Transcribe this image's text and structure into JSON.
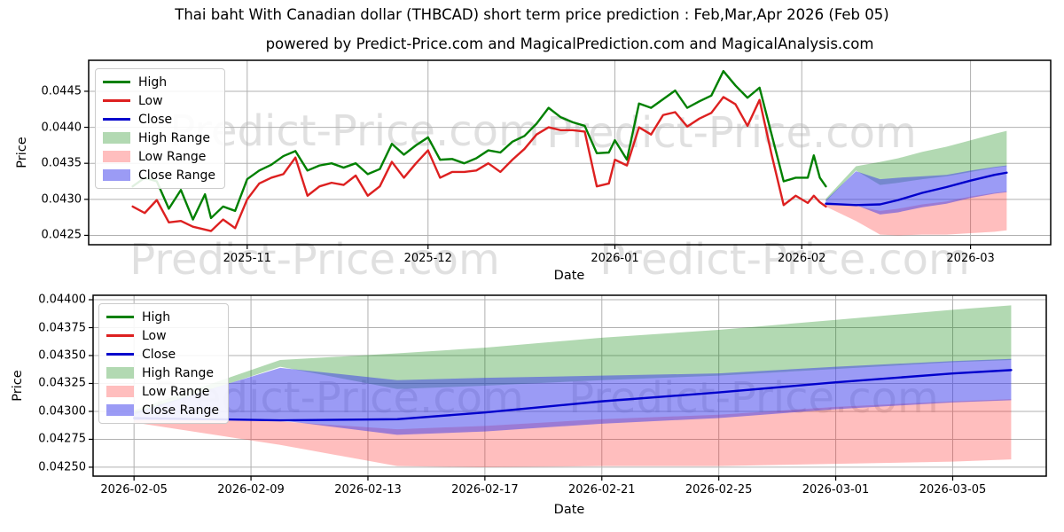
{
  "figure": {
    "title": "Thai baht With Canadian dollar (THBCAD) short term price prediction : Feb,Mar,Apr 2026 (Feb 05)",
    "subtitle": "powered by Predict-Price.com and MagicalPrediction.com and MagicalAnalysis.com",
    "watermark": "Predict-Price.com"
  },
  "legend": {
    "items": [
      {
        "label": "High",
        "swatch": "line",
        "color": "#008000"
      },
      {
        "label": "Low",
        "swatch": "line",
        "color": "#dd2020"
      },
      {
        "label": "Close",
        "swatch": "line",
        "color": "#0000cc"
      },
      {
        "label": "High Range",
        "swatch": "patch",
        "color": "rgba(0,128,0,0.30)"
      },
      {
        "label": "Low Range",
        "swatch": "patch",
        "color": "rgba(255,40,40,0.30)"
      },
      {
        "label": "Close Range",
        "swatch": "patch",
        "color": "rgba(55,55,235,0.50)"
      }
    ]
  },
  "chart_data": [
    {
      "type": "line",
      "name": "history-with-forecast",
      "xlabel": "Date",
      "ylabel": "Price",
      "x_epoch": "day 0 = 2025-10-13",
      "xlim": [
        -7.3,
        152.3
      ],
      "ylim": [
        0.04237,
        0.04493
      ],
      "grid": true,
      "legend_position": "upper-left",
      "xticks": {
        "days": [
          19,
          49,
          80,
          111,
          139
        ],
        "labels": [
          "2025-11",
          "2025-12",
          "2026-01",
          "2026-02",
          "2026-03"
        ]
      },
      "yticks": {
        "values": [
          0.0425,
          0.043,
          0.0435,
          0.044,
          0.0445
        ],
        "labels": [
          "0.0425",
          "0.0430",
          "0.0435",
          "0.0440",
          "0.0445"
        ]
      },
      "history": {
        "days": [
          0,
          2,
          4,
          6,
          8,
          10,
          12,
          13,
          15,
          17,
          19,
          21,
          23,
          25,
          27,
          29,
          31,
          33,
          35,
          37,
          39,
          41,
          43,
          45,
          47,
          49,
          51,
          53,
          55,
          57,
          59,
          61,
          63,
          65,
          67,
          69,
          71,
          73,
          75,
          77,
          79,
          80,
          82,
          84,
          86,
          88,
          90,
          92,
          94,
          96,
          98,
          100,
          102,
          104,
          106,
          108,
          110,
          112,
          113,
          114,
          115
        ],
        "high": [
          0.04318,
          0.0433,
          0.04325,
          0.04287,
          0.04313,
          0.04272,
          0.04307,
          0.04274,
          0.0429,
          0.04284,
          0.04328,
          0.0434,
          0.04348,
          0.0436,
          0.04367,
          0.0434,
          0.04347,
          0.0435,
          0.04344,
          0.0435,
          0.04335,
          0.04342,
          0.04377,
          0.04362,
          0.04375,
          0.04386,
          0.04355,
          0.04356,
          0.0435,
          0.04357,
          0.04368,
          0.04365,
          0.0438,
          0.04388,
          0.04405,
          0.04427,
          0.04414,
          0.04407,
          0.04402,
          0.04364,
          0.04365,
          0.04382,
          0.04355,
          0.04433,
          0.04427,
          0.04439,
          0.04451,
          0.04427,
          0.04436,
          0.04444,
          0.04478,
          0.04458,
          0.04441,
          0.04455,
          0.0439,
          0.04325,
          0.0433,
          0.0433,
          0.04361,
          0.0433,
          0.04318
        ],
        "low": [
          0.0429,
          0.04281,
          0.04299,
          0.04268,
          0.0427,
          0.04262,
          0.04258,
          0.04256,
          0.04272,
          0.0426,
          0.043,
          0.04322,
          0.0433,
          0.04335,
          0.04358,
          0.04305,
          0.04318,
          0.04323,
          0.0432,
          0.04333,
          0.04305,
          0.04318,
          0.04352,
          0.0433,
          0.0435,
          0.04368,
          0.0433,
          0.04338,
          0.04338,
          0.0434,
          0.0435,
          0.04338,
          0.04355,
          0.0437,
          0.0439,
          0.044,
          0.04396,
          0.04396,
          0.04394,
          0.04318,
          0.04322,
          0.04355,
          0.04347,
          0.044,
          0.0439,
          0.04417,
          0.04421,
          0.04401,
          0.04412,
          0.0442,
          0.04442,
          0.04432,
          0.04402,
          0.04438,
          0.04362,
          0.04292,
          0.04305,
          0.04295,
          0.04305,
          0.04296,
          0.0429
        ]
      },
      "forecast": {
        "days": [
          115,
          120,
          124,
          127,
          131,
          135,
          139,
          143,
          145
        ],
        "close": [
          0.04294,
          0.04292,
          0.04293,
          0.04299,
          0.04309,
          0.04317,
          0.04326,
          0.04334,
          0.04337
        ],
        "close_upper": [
          0.04299,
          0.04339,
          0.04328,
          0.0433,
          0.04332,
          0.04334,
          0.0434,
          0.04345,
          0.04347
        ],
        "close_lower": [
          0.04292,
          0.04292,
          0.04279,
          0.04282,
          0.04289,
          0.04294,
          0.04302,
          0.04308,
          0.0431
        ],
        "high_upper": [
          0.04301,
          0.04346,
          0.04352,
          0.04357,
          0.04366,
          0.04373,
          0.04382,
          0.04391,
          0.04395
        ],
        "high_lower": [
          0.04297,
          0.0434,
          0.0432,
          0.04323,
          0.04328,
          0.04332,
          0.04338,
          0.04344,
          0.04346
        ],
        "low_upper": [
          0.04293,
          0.04291,
          0.04284,
          0.04287,
          0.04293,
          0.04297,
          0.04304,
          0.04309,
          0.04311
        ],
        "low_lower": [
          0.0429,
          0.0427,
          0.04251,
          0.0425,
          0.04251,
          0.04251,
          0.04253,
          0.04255,
          0.04257
        ]
      },
      "colors": {
        "high": "#008000",
        "low": "#dd2020",
        "close": "#0000cc",
        "high_range": "rgba(0,128,0,0.30)",
        "low_range": "rgba(255,40,40,0.30)",
        "close_range": "rgba(55,55,235,0.50)",
        "grid": "#b0b0b0"
      }
    },
    {
      "type": "line",
      "name": "forecast-detail",
      "xlabel": "Date",
      "ylabel": "Price",
      "x_epoch": "day 0 = 2026-02-05",
      "xlim": [
        -1.4,
        31.2
      ],
      "ylim": [
        0.04242,
        0.04404
      ],
      "grid": true,
      "legend_position": "upper-left",
      "xticks": {
        "days": [
          0,
          4,
          8,
          12,
          16,
          20,
          24,
          28
        ],
        "labels": [
          "2026-02-05",
          "2026-02-09",
          "2026-02-13",
          "2026-02-17",
          "2026-02-21",
          "2026-02-25",
          "2026-03-01",
          "2026-03-05"
        ]
      },
      "yticks": {
        "values": [
          0.0425,
          0.04275,
          0.043,
          0.04325,
          0.0435,
          0.04375,
          0.044
        ],
        "labels": [
          "0.04250",
          "0.04275",
          "0.04300",
          "0.04325",
          "0.04350",
          "0.04375",
          "0.04400"
        ]
      },
      "history": {
        "days": [],
        "high": [],
        "low": []
      },
      "forecast": {
        "days": [
          0,
          5,
          9,
          12,
          16,
          20,
          24,
          28,
          30
        ],
        "close": [
          0.04294,
          0.04292,
          0.04293,
          0.04299,
          0.04309,
          0.04317,
          0.04326,
          0.04334,
          0.04337
        ],
        "close_upper": [
          0.04299,
          0.04339,
          0.04328,
          0.0433,
          0.04332,
          0.04334,
          0.0434,
          0.04345,
          0.04347
        ],
        "close_lower": [
          0.04292,
          0.04292,
          0.04279,
          0.04282,
          0.04289,
          0.04294,
          0.04302,
          0.04308,
          0.0431
        ],
        "high_upper": [
          0.04301,
          0.04346,
          0.04352,
          0.04357,
          0.04366,
          0.04373,
          0.04382,
          0.04391,
          0.04395
        ],
        "high_lower": [
          0.04297,
          0.0434,
          0.0432,
          0.04323,
          0.04328,
          0.04332,
          0.04338,
          0.04344,
          0.04346
        ],
        "low_upper": [
          0.04293,
          0.04291,
          0.04284,
          0.04287,
          0.04293,
          0.04297,
          0.04304,
          0.04309,
          0.04311
        ],
        "low_lower": [
          0.0429,
          0.0427,
          0.04251,
          0.0425,
          0.04251,
          0.04251,
          0.04253,
          0.04255,
          0.04257
        ]
      },
      "colors": {
        "high": "#008000",
        "low": "#dd2020",
        "close": "#0000cc",
        "high_range": "rgba(0,128,0,0.30)",
        "low_range": "rgba(255,40,40,0.30)",
        "close_range": "rgba(55,55,235,0.50)",
        "grid": "#b0b0b0"
      }
    }
  ]
}
